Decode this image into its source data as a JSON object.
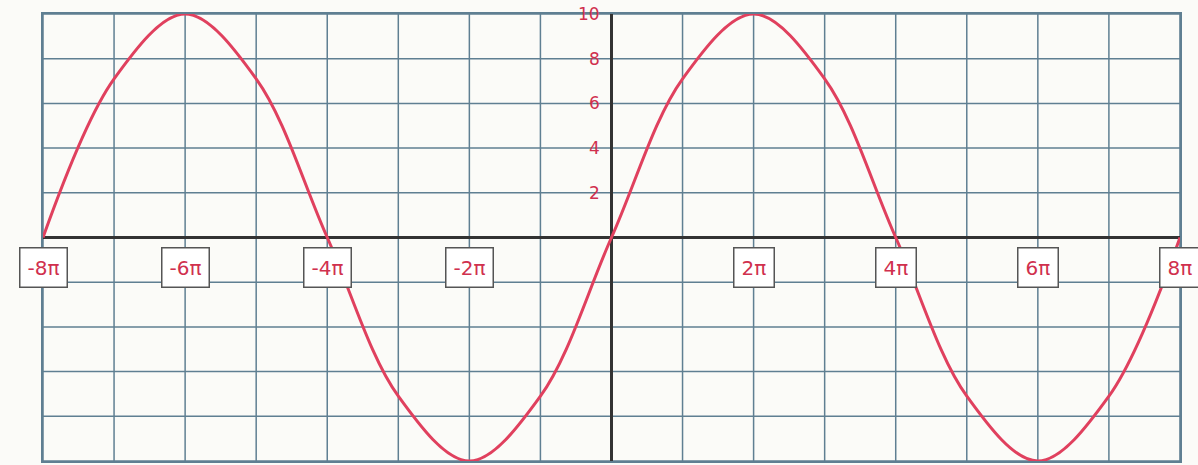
{
  "chart_data": {
    "type": "line",
    "x": [
      -25.133,
      -21.991,
      -18.85,
      -15.708,
      -12.566,
      -9.425,
      -6.283,
      -3.142,
      0,
      3.142,
      6.283,
      9.425,
      12.566,
      15.708,
      18.85,
      21.991,
      25.133
    ],
    "values": [
      0,
      7.1,
      10,
      7.1,
      0,
      -7.1,
      -10,
      -7.1,
      0,
      7.1,
      10,
      7.1,
      0,
      -7.1,
      -10,
      -7.1,
      0
    ],
    "color": "#e0405e",
    "xlim": [
      -25.133,
      25.133
    ],
    "xticks": [
      {
        "value": -25.133,
        "label": "-8π"
      },
      {
        "value": -18.85,
        "label": "-6π"
      },
      {
        "value": -12.566,
        "label": "-4π"
      },
      {
        "value": -6.283,
        "label": "-2π"
      },
      {
        "value": 6.283,
        "label": "2π"
      },
      {
        "value": 12.566,
        "label": "4π"
      },
      {
        "value": 18.85,
        "label": "6π"
      },
      {
        "value": 25.133,
        "label": "8π"
      }
    ],
    "ylim": [
      -10,
      10
    ],
    "yticks": [
      2,
      4,
      6,
      8,
      10
    ],
    "grid": true
  }
}
